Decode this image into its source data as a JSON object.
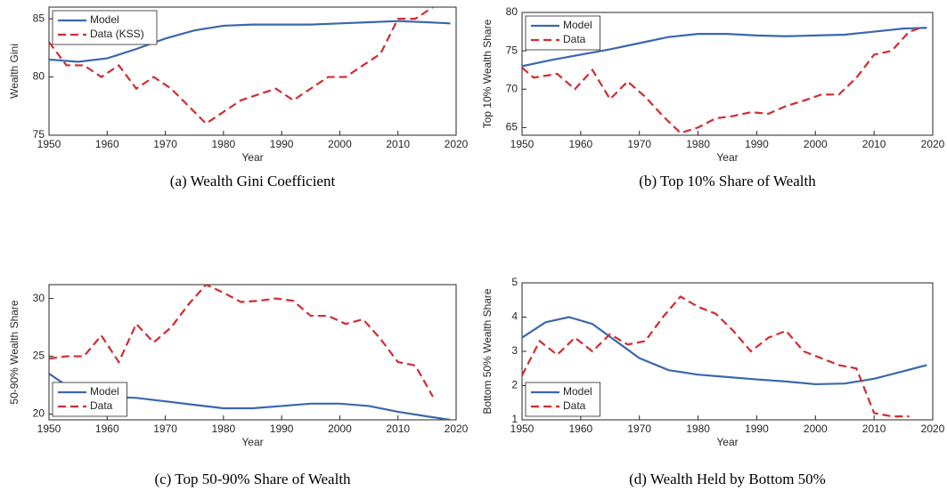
{
  "chart_data": [
    {
      "type": "line",
      "title": "(a)  Wealth Gini Coefficient",
      "xlabel": "Year",
      "ylabel": "Wealth Gini",
      "xlim": [
        1950,
        2020
      ],
      "xticks": [
        1950,
        1960,
        1970,
        1980,
        1990,
        2000,
        2010,
        2020
      ],
      "ylim": [
        75,
        86
      ],
      "yticks": [
        75,
        80,
        85
      ],
      "legend": "northwest",
      "series": [
        {
          "name": "Model",
          "color": "#3a67ae",
          "line_style": "solid",
          "x": [
            1950,
            1955,
            1960,
            1965,
            1970,
            1975,
            1980,
            1985,
            1990,
            1995,
            2000,
            2005,
            2010,
            2015,
            2019
          ],
          "values": [
            81.5,
            81.3,
            81.6,
            82.4,
            83.3,
            84.0,
            84.4,
            84.5,
            84.5,
            84.5,
            84.6,
            84.7,
            84.8,
            84.7,
            84.6
          ]
        },
        {
          "name": "Data (KSS)",
          "color": "#d42a30",
          "line_style": "dashed",
          "x": [
            1950,
            1953,
            1956,
            1959,
            1962,
            1965,
            1968,
            1971,
            1974,
            1977,
            1980,
            1983,
            1986,
            1989,
            1992,
            1995,
            1998,
            2001,
            2004,
            2007,
            2010,
            2013,
            2016
          ],
          "values": [
            83,
            81,
            81,
            80,
            81,
            79,
            80,
            79,
            77.5,
            76,
            77,
            78,
            78.5,
            79,
            78,
            79,
            80,
            80,
            81,
            82,
            85,
            85,
            86
          ]
        }
      ]
    },
    {
      "type": "line",
      "title": "(b)  Top 10% Share of Wealth",
      "xlabel": "Year",
      "ylabel": "Top 10% Wealth Share",
      "xlim": [
        1950,
        2020
      ],
      "xticks": [
        1950,
        1960,
        1970,
        1980,
        1990,
        2000,
        2010,
        2020
      ],
      "ylim": [
        64,
        80
      ],
      "yticks": [
        65,
        70,
        75,
        80
      ],
      "legend": "northwest",
      "series": [
        {
          "name": "Model",
          "color": "#3a67ae",
          "line_style": "solid",
          "x": [
            1950,
            1955,
            1960,
            1965,
            1970,
            1975,
            1980,
            1985,
            1990,
            1995,
            2000,
            2005,
            2010,
            2015,
            2019
          ],
          "values": [
            73,
            73.8,
            74.5,
            75.2,
            76,
            76.8,
            77.2,
            77.2,
            77,
            76.9,
            77,
            77.1,
            77.5,
            77.9,
            78
          ]
        },
        {
          "name": "Data",
          "color": "#d42a30",
          "line_style": "dashed",
          "x": [
            1950,
            1952,
            1956,
            1959,
            1962,
            1965,
            1968,
            1971,
            1974,
            1977,
            1980,
            1983,
            1986,
            1989,
            1992,
            1995,
            1998,
            2001,
            2004,
            2007,
            2010,
            2013,
            2016,
            2018
          ],
          "values": [
            72.8,
            71.5,
            72,
            70,
            72.5,
            68.7,
            71,
            69,
            66.5,
            64.3,
            65,
            66.2,
            66.5,
            67,
            66.8,
            67.8,
            68.5,
            69.3,
            69.3,
            71.5,
            74.5,
            75,
            77.5,
            78
          ]
        }
      ]
    },
    {
      "type": "line",
      "title": "(c)  Top 50-90% Share of Wealth",
      "xlabel": "Year",
      "ylabel": "50-90% Wealth Share",
      "xlim": [
        1950,
        2020
      ],
      "xticks": [
        1950,
        1960,
        1970,
        1980,
        1990,
        2000,
        2010,
        2020
      ],
      "ylim": [
        19.5,
        31.2
      ],
      "yticks": [
        20,
        25,
        30
      ],
      "legend": "southwest",
      "series": [
        {
          "name": "Model",
          "color": "#3a67ae",
          "line_style": "solid",
          "x": [
            1950,
            1955,
            1960,
            1965,
            1970,
            1975,
            1980,
            1985,
            1990,
            1995,
            2000,
            2005,
            2010,
            2015,
            2019
          ],
          "values": [
            23.5,
            21.8,
            21.5,
            21.4,
            21.1,
            20.8,
            20.5,
            20.5,
            20.7,
            20.9,
            20.9,
            20.7,
            20.2,
            19.8,
            19.5
          ]
        },
        {
          "name": "Data",
          "color": "#d42a30",
          "line_style": "dashed",
          "x": [
            1950,
            1953,
            1956,
            1959,
            1962,
            1965,
            1968,
            1971,
            1974,
            1977,
            1980,
            1983,
            1986,
            1989,
            1992,
            1995,
            1998,
            2001,
            2004,
            2007,
            2010,
            2013,
            2016
          ],
          "values": [
            24.8,
            25,
            25,
            26.8,
            24.5,
            27.8,
            26.2,
            27.5,
            29.5,
            31.2,
            30.5,
            29.7,
            29.8,
            30,
            29.8,
            28.5,
            28.5,
            27.8,
            28.2,
            26.5,
            24.5,
            24.2,
            21.5
          ]
        }
      ]
    },
    {
      "type": "line",
      "title": "(d)  Wealth Held by Bottom 50%",
      "xlabel": "Year",
      "ylabel": "Bottom 50% Wealth Share",
      "xlim": [
        1950,
        2020
      ],
      "xticks": [
        1950,
        1960,
        1970,
        1980,
        1990,
        2000,
        2010,
        2020
      ],
      "ylim": [
        1,
        5
      ],
      "yticks": [
        1,
        2,
        3,
        4,
        5
      ],
      "legend": "southwest",
      "series": [
        {
          "name": "Model",
          "color": "#3a67ae",
          "line_style": "solid",
          "x": [
            1950,
            1954,
            1958,
            1962,
            1966,
            1970,
            1975,
            1980,
            1985,
            1990,
            1995,
            2000,
            2005,
            2010,
            2015,
            2019
          ],
          "values": [
            3.4,
            3.85,
            4.0,
            3.8,
            3.3,
            2.8,
            2.45,
            2.32,
            2.25,
            2.18,
            2.12,
            2.04,
            2.06,
            2.2,
            2.42,
            2.6
          ]
        },
        {
          "name": "Data",
          "color": "#d42a30",
          "line_style": "dashed",
          "x": [
            1950,
            1953,
            1956,
            1959,
            1962,
            1965,
            1968,
            1971,
            1974,
            1977,
            1980,
            1983,
            1986,
            1989,
            1992,
            1995,
            1998,
            2001,
            2004,
            2007,
            2010,
            2013,
            2016
          ],
          "values": [
            2.3,
            3.3,
            2.9,
            3.4,
            3.0,
            3.5,
            3.2,
            3.3,
            4.0,
            4.6,
            4.3,
            4.1,
            3.6,
            3.0,
            3.4,
            3.6,
            3.0,
            2.8,
            2.6,
            2.5,
            1.2,
            1.1,
            1.1
          ]
        }
      ]
    }
  ]
}
